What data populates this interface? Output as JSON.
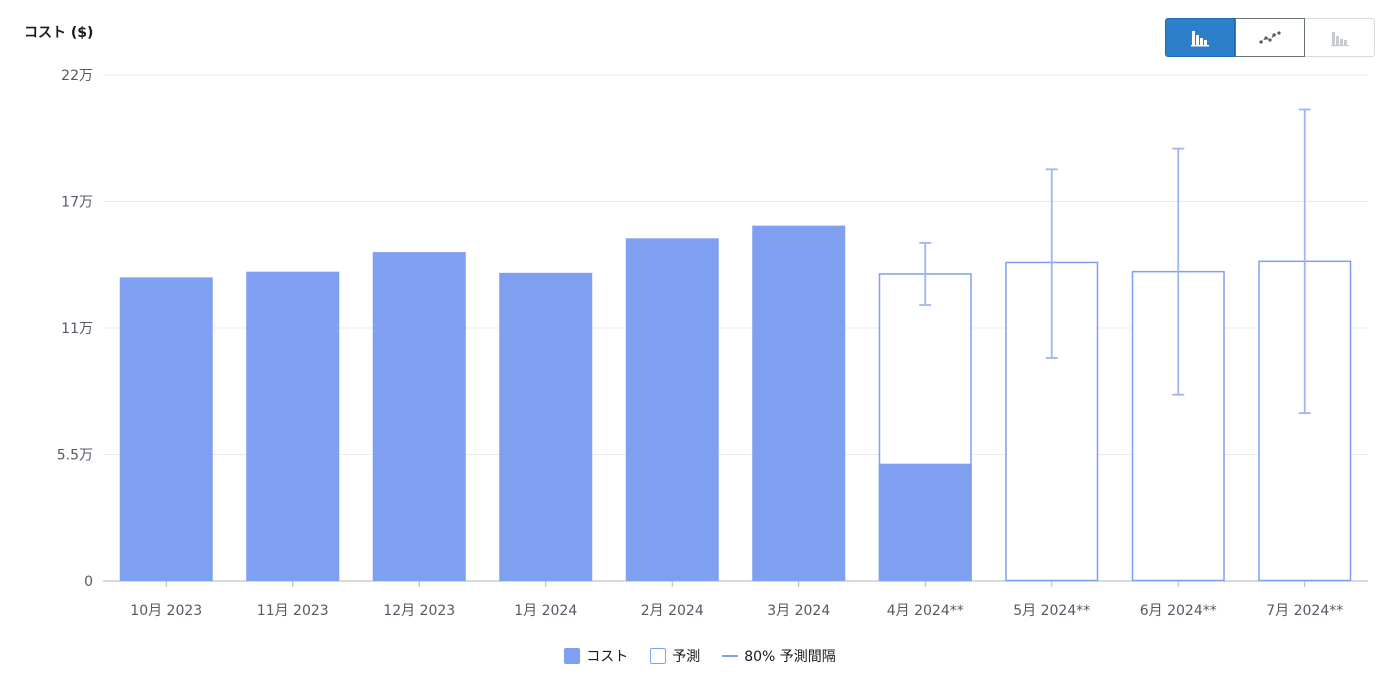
{
  "header": {
    "y_title": "コスト ($)"
  },
  "view_toggle": {
    "options": [
      {
        "icon": "bar-chart-icon",
        "active": true
      },
      {
        "icon": "line-chart-icon",
        "active": false
      },
      {
        "icon": "stacked-bar-chart-icon",
        "active": false,
        "disabled": true
      }
    ]
  },
  "legend": {
    "cost": "コスト",
    "forecast": "予測",
    "interval": "80% 予測間隔"
  },
  "colors": {
    "bar": "#7f9ff0",
    "grid": "#e9ebed",
    "axis": "#aab7b8"
  },
  "chart_data": {
    "type": "bar",
    "ylabel": "コスト ($)",
    "ylim": [
      0,
      220000
    ],
    "y_ticks": [
      {
        "value": 0,
        "label": "0"
      },
      {
        "value": 55000,
        "label": "5.5万"
      },
      {
        "value": 110000,
        "label": "11万"
      },
      {
        "value": 165000,
        "label": "17万"
      },
      {
        "value": 220000,
        "label": "22万"
      }
    ],
    "categories": [
      "10月 2023",
      "11月 2023",
      "12月 2023",
      "1月 2024",
      "2月 2024",
      "3月 2024",
      "4月 2024**",
      "5月 2024**",
      "6月 2024**",
      "7月 2024**"
    ],
    "series": [
      {
        "name": "コスト",
        "values": [
          132000,
          134500,
          143000,
          134000,
          149000,
          154500,
          51000,
          null,
          null,
          null
        ]
      },
      {
        "name": "予測",
        "values": [
          null,
          null,
          null,
          null,
          null,
          null,
          133500,
          138500,
          134500,
          139000
        ]
      }
    ],
    "interval_80": [
      null,
      null,
      null,
      null,
      null,
      null,
      [
        120000,
        147000
      ],
      [
        97000,
        179000
      ],
      [
        81000,
        188000
      ],
      [
        73000,
        205000
      ]
    ],
    "legend_position": "bottom",
    "grid": true
  }
}
